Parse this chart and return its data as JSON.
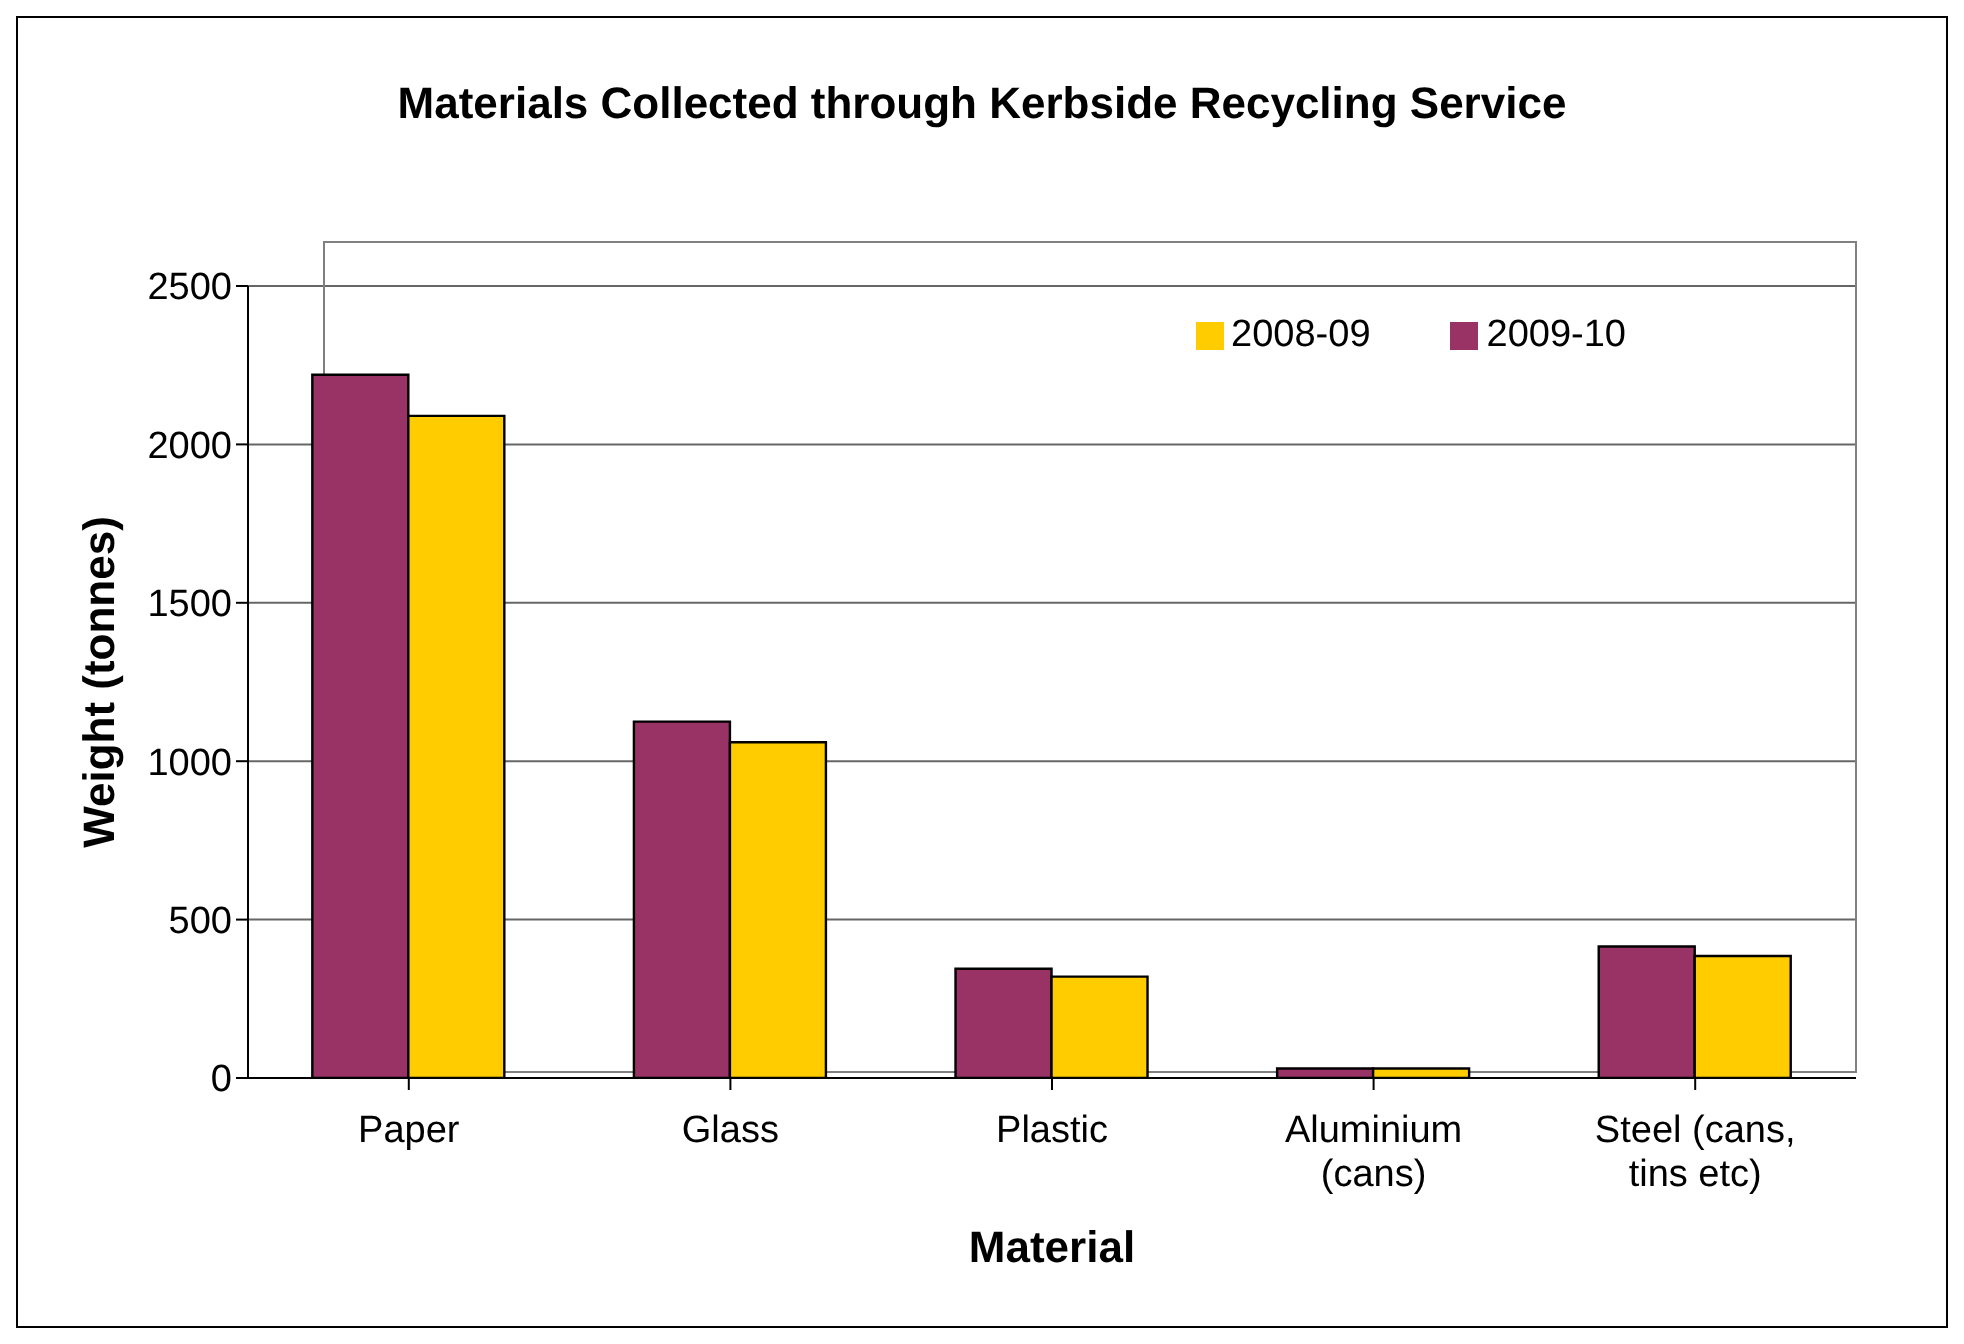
{
  "chart_data": {
    "type": "bar",
    "title": "Materials Collected through Kerbside Recycling Service",
    "xlabel": "Material",
    "ylabel": "Weight (tonnes)",
    "categories": [
      "Paper",
      "Glass",
      "Plastic",
      "Aluminium (cans)",
      "Steel (cans, tins etc)"
    ],
    "series": [
      {
        "name": "2009-10",
        "color": "#993366",
        "values": [
          2220,
          1125,
          345,
          30,
          415
        ]
      },
      {
        "name": "2008-09",
        "color": "#ffcc00",
        "values": [
          2090,
          1060,
          320,
          30,
          385
        ]
      }
    ],
    "ylim": [
      0,
      2500
    ],
    "yticks": [
      0,
      500,
      1000,
      1500,
      2000,
      2500
    ],
    "grid": "y",
    "legend": "top right"
  }
}
